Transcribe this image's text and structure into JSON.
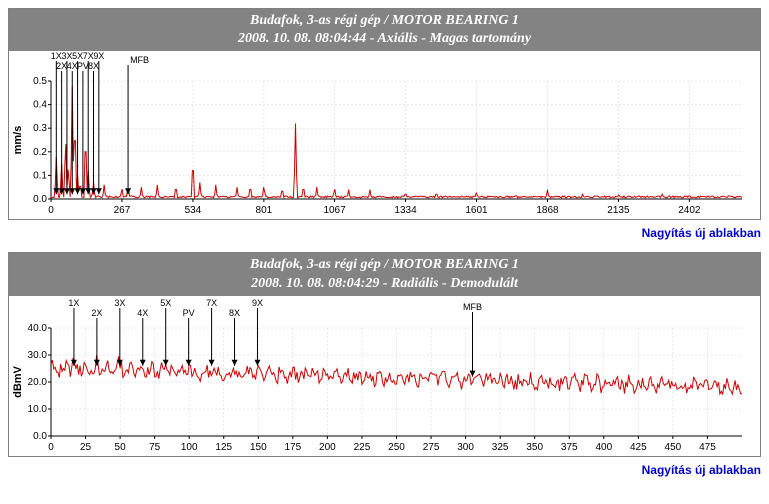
{
  "chart1": {
    "type": "line",
    "title_line1": "Budafok, 3-as régi gép / MOTOR BEARING 1",
    "title_line2": "2008. 10. 08. 08:04:44 - Axiális - Magas tartomány",
    "ylabel": "mm/s",
    "ylim": [
      0,
      0.5
    ],
    "yticks": [
      0,
      0.1,
      0.2,
      0.3,
      0.4,
      0.5
    ],
    "xlim": [
      0,
      2600
    ],
    "xticks": [
      0,
      267,
      534,
      801,
      1067,
      1334,
      1601,
      1868,
      2135,
      2402
    ],
    "markers_top": [
      "1X",
      "3X",
      "5X",
      "7X",
      "9X"
    ],
    "markers_bot": [
      "2X",
      "4X",
      "PV",
      "8X"
    ],
    "marker_mfb": "MFB",
    "line_color": "#cc0000",
    "grid_color": "#d0d0d0",
    "background_color": "#ffffff",
    "header_bg": "#838383",
    "header_color": "#ffffff",
    "zoom_text": "Nagyítás új ablakban"
  },
  "chart2": {
    "type": "line",
    "title_line1": "Budafok, 3-as régi gép / MOTOR BEARING 1",
    "title_line2": "2008. 10. 08. 08:04:29 - Radiális - Demodulált",
    "ylabel": "dBmV",
    "ylim": [
      0,
      40
    ],
    "yticks": [
      0,
      10,
      20,
      30,
      40
    ],
    "xlim": [
      0,
      500
    ],
    "xticks": [
      0,
      25,
      50,
      75,
      100,
      125,
      150,
      175,
      200,
      225,
      250,
      275,
      300,
      325,
      350,
      375,
      400,
      425,
      450,
      475
    ],
    "markers_top": [
      "1X",
      "3X",
      "5X",
      "7X",
      "9X"
    ],
    "markers_bot": [
      "2X",
      "4X",
      "PV",
      "8X"
    ],
    "marker_mfb": "MFB",
    "line_color": "#cc0000",
    "grid_color": "#d0d0d0",
    "background_color": "#ffffff",
    "header_bg": "#838383",
    "header_color": "#ffffff",
    "zoom_text": "Nagyítás új ablakban"
  }
}
